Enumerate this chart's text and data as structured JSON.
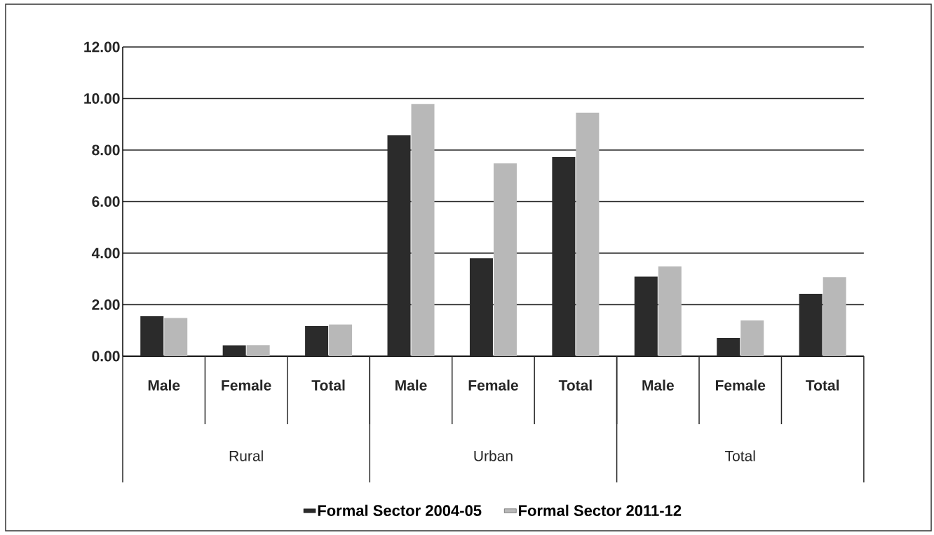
{
  "chart_data": {
    "type": "bar",
    "categories": [
      "Male",
      "Female",
      "Total",
      "Male",
      "Female",
      "Total",
      "Male",
      "Female",
      "Total"
    ],
    "series": [
      {
        "name": "Formal Sector 2004-05",
        "color": "#2b2b2b",
        "values": [
          1.55,
          0.42,
          1.17,
          8.57,
          3.8,
          7.73,
          3.09,
          0.71,
          2.42
        ]
      },
      {
        "name": "Formal Sector 2011-12",
        "color": "#b8b8b8",
        "values": [
          1.48,
          0.43,
          1.23,
          9.79,
          7.48,
          9.45,
          3.48,
          1.39,
          3.07
        ]
      }
    ],
    "annotations": [
      "Rural",
      "Urban",
      "Total"
    ],
    "ylim": [
      0,
      12
    ],
    "yticks": [
      {
        "value": 0,
        "label": "0.00"
      },
      {
        "value": 2,
        "label": "2.00"
      },
      {
        "value": 4,
        "label": "4.00"
      },
      {
        "value": 6,
        "label": "6.00"
      },
      {
        "value": 8,
        "label": "8.00"
      },
      {
        "value": 10,
        "label": "10.00"
      },
      {
        "value": 12,
        "label": "12.00"
      }
    ],
    "grid": "y",
    "legend": "bottom"
  }
}
